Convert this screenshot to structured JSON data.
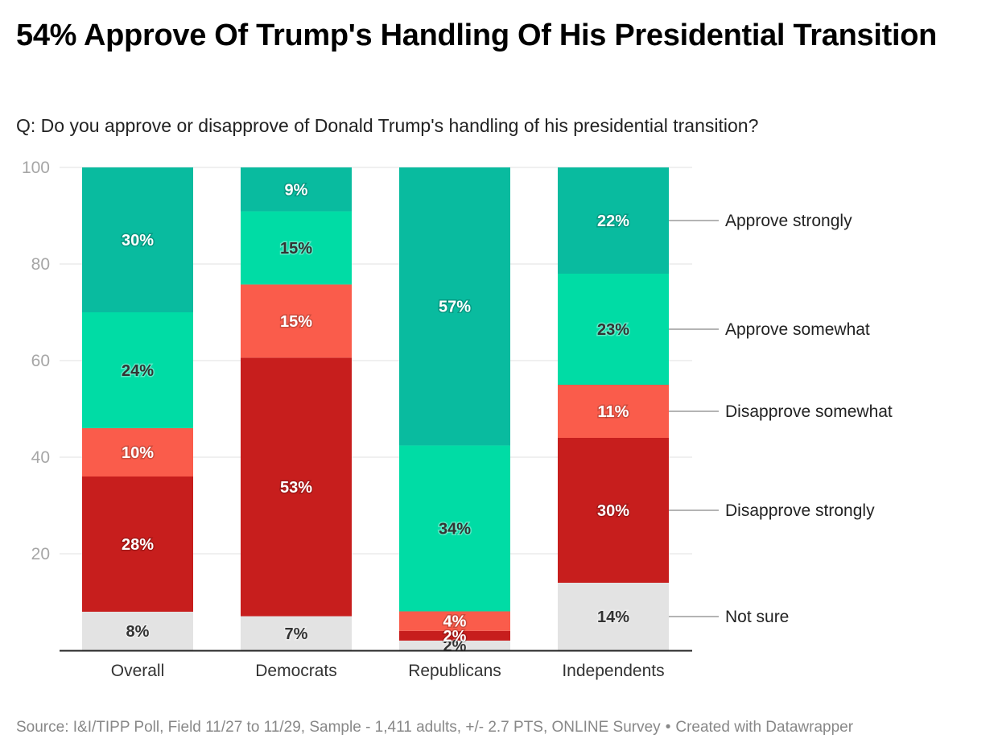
{
  "title": "54% Approve Of Trump's Handling Of His Presidential Transition",
  "subtitle": "Q: Do you approve or disapprove of Donald Trump's handling of his presidential transition?",
  "footer": {
    "source": "Source: I&I/TIPP Poll, Field 11/27 to 11/29, Sample - 1,411 adults, +/- 2.7 PTS, ONLINE Survey",
    "separator": "•",
    "credit": "Created with Datawrapper"
  },
  "chart_data": {
    "type": "bar",
    "stacked": true,
    "title": "54% Approve Of Trump's Handling Of His Presidential Transition",
    "subtitle": "Q: Do you approve or disapprove of Donald Trump's handling of his presidential transition?",
    "xlabel": "",
    "ylabel": "",
    "ylim": [
      0,
      100
    ],
    "yticks": [
      20,
      40,
      60,
      80,
      100
    ],
    "grid": true,
    "legend": "right, inline labels",
    "categories": [
      "Overall",
      "Democrats",
      "Republicans",
      "Independents"
    ],
    "series": [
      {
        "name": "Not sure",
        "color": "#e3e3e3",
        "label_color": "#333333",
        "values": [
          8,
          7,
          2,
          14
        ]
      },
      {
        "name": "Disapprove strongly",
        "color": "#c71e1d",
        "label_color": "#ffffff",
        "values": [
          28,
          53,
          2,
          30
        ]
      },
      {
        "name": "Disapprove somewhat",
        "color": "#fa5c4b",
        "label_color": "#ffffff",
        "values": [
          10,
          15,
          4,
          11
        ]
      },
      {
        "name": "Approve somewhat",
        "color": "#00dca5",
        "label_color": "#333333",
        "values": [
          24,
          15,
          34,
          23
        ]
      },
      {
        "name": "Approve strongly",
        "color": "#09bb9f",
        "label_color": "#ffffff",
        "values": [
          30,
          9,
          57,
          22
        ]
      }
    ],
    "value_suffix": "%"
  }
}
